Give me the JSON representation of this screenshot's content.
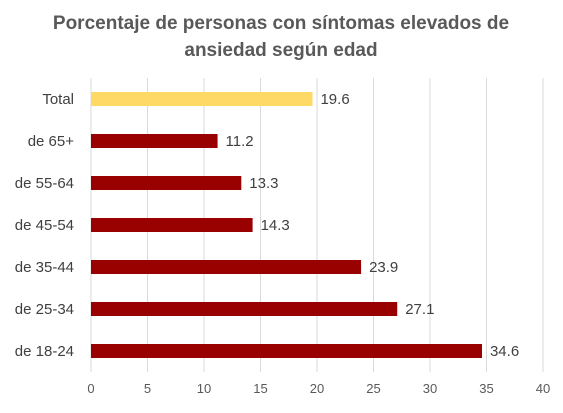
{
  "chart_data": {
    "type": "bar",
    "orientation": "horizontal",
    "title_lines": [
      "Porcentaje de personas con síntomas elevados de",
      "ansiedad según edad"
    ],
    "categories": [
      "Total",
      "de 65+",
      "de 55-64",
      "de 45-54",
      "de 35-44",
      "de 25-34",
      "de 18-24"
    ],
    "values": [
      19.6,
      11.2,
      13.3,
      14.3,
      23.9,
      27.1,
      34.6
    ],
    "data_labels": [
      "19.6",
      "11.2",
      "13.3",
      "14.3",
      "23.9",
      "27.1",
      "34.6"
    ],
    "bar_colors": [
      "#FFD966",
      "#990000",
      "#990000",
      "#990000",
      "#990000",
      "#990000",
      "#990000"
    ],
    "xlim": [
      0,
      40
    ],
    "xticks": [
      0,
      5,
      10,
      15,
      20,
      25,
      30,
      35,
      40
    ],
    "xtick_labels": [
      "0",
      "5",
      "10",
      "15",
      "20",
      "25",
      "30",
      "35",
      "40"
    ],
    "grid": true,
    "legend": false
  }
}
